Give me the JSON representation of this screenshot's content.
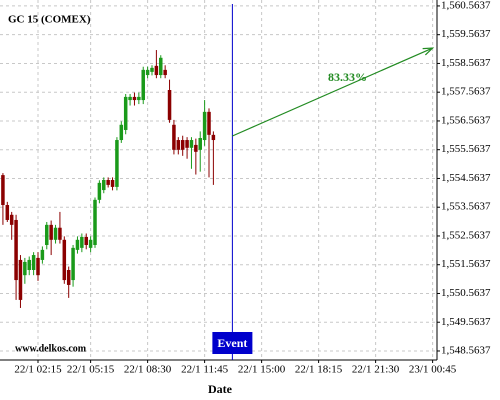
{
  "chart_data": {
    "type": "candlestick",
    "title": "GC 15 (COMEX)",
    "x_label": "Date",
    "watermark": "www.delkos.com",
    "up_color": "#1a9a1a",
    "down_color": "#8b0000",
    "x": [
      "22/1 00:15",
      "22/1 00:30",
      "22/1 00:45",
      "22/1 01:00",
      "22/1 01:15",
      "22/1 01:30",
      "22/1 01:45",
      "22/1 02:00",
      "22/1 02:15",
      "22/1 02:30",
      "22/1 02:45",
      "22/1 03:00",
      "22/1 03:15",
      "22/1 03:30",
      "22/1 03:45",
      "22/1 04:00",
      "22/1 04:15",
      "22/1 04:30",
      "22/1 04:45",
      "22/1 05:00",
      "22/1 05:15",
      "22/1 05:30",
      "22/1 05:45",
      "22/1 06:00",
      "22/1 06:15",
      "22/1 06:30",
      "22/1 06:45",
      "22/1 07:00",
      "22/1 07:15",
      "22/1 07:30",
      "22/1 07:45",
      "22/1 08:00",
      "22/1 08:15",
      "22/1 08:30",
      "22/1 08:45",
      "22/1 09:00",
      "22/1 09:15",
      "22/1 09:30",
      "22/1 09:45",
      "22/1 10:00",
      "22/1 10:15",
      "22/1 10:30",
      "22/1 10:45",
      "22/1 11:00",
      "22/1 11:15",
      "22/1 11:30",
      "22/1 11:45",
      "22/1 12:00",
      "22/1 12:15"
    ],
    "open": [
      1554.68,
      1553.64,
      1553.3,
      1553.12,
      1551.73,
      1551.2,
      1551.38,
      1551.38,
      1551.8,
      1551.73,
      1552.25,
      1552.95,
      1552.43,
      1552.85,
      1552.43,
      1551.38,
      1551.03,
      1552.08,
      1552.15,
      1552.53,
      1552.15,
      1552.25,
      1553.82,
      1554.16,
      1554.51,
      1554.51,
      1554.27,
      1555.9,
      1556.25,
      1557.29,
      1557.4,
      1557.29,
      1557.29,
      1558.16,
      1558.27,
      1558.48,
      1558.16,
      1558.34,
      1557.64,
      1556.43,
      1555.9,
      1555.9,
      1555.9,
      1555.63,
      1555.73,
      1555.56,
      1555.9,
      1556.88,
      1556.08
    ],
    "high": [
      1554.75,
      1553.75,
      1553.4,
      1553.3,
      1551.9,
      1551.8,
      1551.85,
      1552.0,
      1552.0,
      1552.2,
      1553.05,
      1553.1,
      1552.95,
      1553.4,
      1552.55,
      1551.5,
      1552.25,
      1552.55,
      1552.65,
      1552.65,
      1552.55,
      1553.9,
      1554.5,
      1554.6,
      1554.6,
      1554.6,
      1556.0,
      1556.55,
      1557.5,
      1557.5,
      1557.55,
      1557.55,
      1558.45,
      1558.45,
      1558.5,
      1559.03,
      1558.85,
      1558.5,
      1558.0,
      1556.6,
      1556.0,
      1556.05,
      1556.0,
      1556.0,
      1555.95,
      1556.2,
      1557.29,
      1557.0,
      1556.2
    ],
    "low": [
      1552.95,
      1553.05,
      1552.43,
      1550.34,
      1550.06,
      1550.9,
      1551.2,
      1551.2,
      1551.0,
      1551.6,
      1552.1,
      1551.9,
      1552.3,
      1552.3,
      1550.9,
      1550.41,
      1550.8,
      1551.95,
      1552.0,
      1552.1,
      1552.0,
      1552.15,
      1553.7,
      1554.05,
      1554.25,
      1554.15,
      1554.15,
      1555.8,
      1556.1,
      1557.1,
      1557.1,
      1557.15,
      1557.15,
      1558.05,
      1558.15,
      1558.05,
      1558.05,
      1558.05,
      1556.5,
      1555.4,
      1555.4,
      1555.35,
      1555.25,
      1554.9,
      1554.7,
      1554.8,
      1555.7,
      1554.6,
      1554.34
    ],
    "close": [
      1553.64,
      1553.12,
      1552.95,
      1551.03,
      1550.34,
      1551.66,
      1551.73,
      1551.9,
      1551.2,
      1552.08,
      1552.95,
      1552.43,
      1552.85,
      1552.43,
      1551.03,
      1550.86,
      1552.15,
      1552.43,
      1552.53,
      1552.25,
      1552.43,
      1553.82,
      1554.41,
      1554.51,
      1554.34,
      1554.27,
      1555.9,
      1556.43,
      1557.4,
      1557.4,
      1557.29,
      1557.4,
      1558.34,
      1558.34,
      1558.41,
      1558.16,
      1558.76,
      1558.16,
      1556.6,
      1555.56,
      1555.56,
      1555.56,
      1555.63,
      1555.9,
      1555.49,
      1555.97,
      1556.88,
      1556.08,
      1555.9
    ],
    "xlim": [
      "22/1 00:05",
      "23/1 01:00"
    ],
    "xticks": [
      "22/1 02:15",
      "22/1 05:15",
      "22/1 08:30",
      "22/1 11:45",
      "22/1 15:00",
      "22/1 18:15",
      "22/1 21:30",
      "23/1 00:45"
    ],
    "ylim": [
      1548.25,
      1560.77
    ],
    "yticks": [
      {
        "value": 1548.5637,
        "label": "1,548.5637"
      },
      {
        "value": 1549.5637,
        "label": "1,549.5637"
      },
      {
        "value": 1550.5637,
        "label": "1,550.5637"
      },
      {
        "value": 1551.5637,
        "label": "1,551.5637"
      },
      {
        "value": 1552.5637,
        "label": "1,552.5637"
      },
      {
        "value": 1553.5637,
        "label": "1,553.5637"
      },
      {
        "value": 1554.5637,
        "label": "1,554.5637"
      },
      {
        "value": 1555.5637,
        "label": "1,555.5637"
      },
      {
        "value": 1556.5637,
        "label": "1,556.5637"
      },
      {
        "value": 1557.5637,
        "label": "1,557.5637"
      },
      {
        "value": 1558.5637,
        "label": "1,558.5637"
      },
      {
        "value": 1559.5637,
        "label": "1,559.5637"
      },
      {
        "value": 1560.5637,
        "label": "1,560.5637"
      }
    ],
    "grid": true,
    "event": {
      "x": "22/1 13:20",
      "label": "Event",
      "color": "#0000cc"
    },
    "arrow": {
      "x": [
        "22/1 13:20",
        "23/1 00:45"
      ],
      "y": [
        1556.04,
        1559.1
      ],
      "label": "83.33%",
      "color": "#228b22"
    }
  }
}
